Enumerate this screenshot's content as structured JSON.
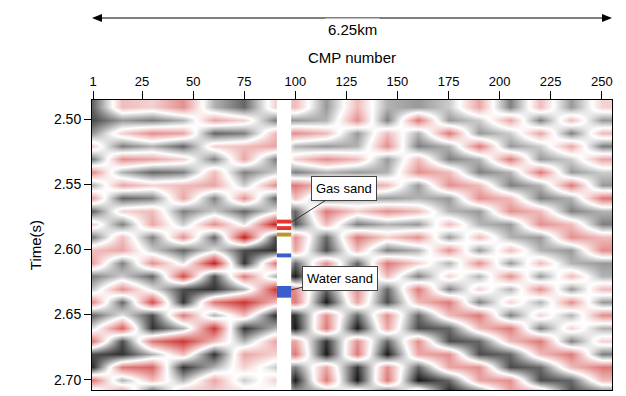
{
  "chart_data": {
    "type": "heatmap",
    "x_title": "CMP number",
    "y_title": "Time(s)",
    "distance_label": "6.25km",
    "x": [
      1,
      15,
      30,
      45,
      60,
      75,
      90,
      100,
      115,
      130,
      145,
      160,
      175,
      190,
      205,
      220,
      235,
      250
    ],
    "y": [
      2.49,
      2.5,
      2.51,
      2.52,
      2.53,
      2.54,
      2.55,
      2.56,
      2.57,
      2.58,
      2.59,
      2.6,
      2.61,
      2.62,
      2.63,
      2.64,
      2.65,
      2.66,
      2.67,
      2.68,
      2.69,
      2.7,
      2.71
    ],
    "z": [
      [
        0.6,
        0.7,
        0.4,
        -0.2,
        0.5,
        -0.5,
        0.3,
        -0.4,
        0.6,
        -0.2,
        0.5,
        -0.3,
        -0.4,
        0.5,
        0.2,
        -0.5,
        0.6,
        0.1,
        -0.6,
        0.7,
        0.8,
        -0.6,
        0.3
      ],
      [
        -0.3,
        0.4,
        -0.2,
        0.5,
        -0.5,
        0.3,
        -0.4,
        0.6,
        -0.2,
        0.5,
        -0.3,
        -0.4,
        0.5,
        0.2,
        -0.5,
        0.6,
        0.1,
        -0.7,
        0.7,
        0.8,
        -0.6,
        0.3,
        -0.6
      ],
      [
        -0.2,
        0.5,
        -0.5,
        0.3,
        -0.4,
        0.6,
        -0.2,
        0.5,
        -0.3,
        -0.4,
        0.5,
        0.2,
        -0.5,
        0.6,
        0.1,
        -0.8,
        0.7,
        0.8,
        -0.6,
        0.3,
        -0.7,
        -0.3,
        0.8
      ],
      [
        -0.5,
        0.3,
        -0.4,
        0.6,
        -0.2,
        0.5,
        -0.3,
        -0.4,
        0.5,
        0.2,
        -0.5,
        0.6,
        0.1,
        -0.8,
        0.7,
        0.8,
        -0.6,
        0.3,
        -0.9,
        -0.3,
        0.8,
        0.3,
        -0.4
      ],
      [
        0.3,
        -0.4,
        0.6,
        -0.2,
        0.5,
        -0.3,
        -0.4,
        0.5,
        0.2,
        -0.5,
        0.6,
        0.1,
        -1.0,
        0.7,
        0.8,
        -0.6,
        0.3,
        -0.9,
        -0.3,
        0.8,
        0.3,
        -0.4,
        -0.2
      ],
      [
        0.6,
        -0.2,
        0.5,
        -0.3,
        -0.4,
        0.5,
        0.2,
        -0.5,
        0.6,
        0.1,
        -1.0,
        0.7,
        0.8,
        -0.6,
        0.3,
        -0.9,
        -0.3,
        0.8,
        0.3,
        -0.4,
        -0.2,
        0.2,
        -0.2
      ],
      [
        -0.2,
        0.5,
        -0.3,
        -0.4,
        0.5,
        0.2,
        -0.5,
        0.6,
        0.1,
        -1.0,
        0.7,
        0.8,
        -0.6,
        0.3,
        -0.9,
        -0.3,
        0.8,
        0.3,
        -0.4,
        -0.2,
        0.2,
        -0.2,
        0.1
      ],
      [
        -0.3,
        0.4,
        -0.5,
        0.3,
        -0.2,
        0.5,
        -0.6,
        -0.3,
        0.6,
        0.7,
        -0.5,
        -0.4,
        0.6,
        0.9,
        -0.5,
        -0.6,
        0.8,
        0.9,
        -0.4,
        -0.6,
        0.5,
        0.9,
        0.3
      ],
      [
        0.4,
        0.3,
        -0.3,
        0.4,
        -0.5,
        0.3,
        -0.2,
        0.5,
        -0.6,
        -0.3,
        0.6,
        0.7,
        -0.5,
        -0.4,
        0.6,
        0.9,
        -0.5,
        -0.6,
        0.8,
        0.9,
        -0.4,
        -0.6,
        0.5
      ],
      [
        -0.3,
        -0.5,
        0.4,
        0.3,
        -0.3,
        0.4,
        -0.5,
        0.3,
        -0.2,
        0.5,
        -0.6,
        -0.3,
        0.6,
        0.7,
        -0.5,
        -0.4,
        0.6,
        0.9,
        -0.5,
        -0.6,
        0.8,
        0.9,
        -0.4
      ],
      [
        0.3,
        0.5,
        -0.3,
        -0.5,
        0.4,
        0.3,
        -0.3,
        0.4,
        -0.5,
        0.3,
        -0.2,
        0.5,
        -0.6,
        -0.3,
        0.6,
        0.7,
        -0.5,
        -0.4,
        0.6,
        0.9,
        -0.5,
        -0.6,
        0.8
      ],
      [
        0.4,
        -0.6,
        0.3,
        0.5,
        -0.3,
        -0.5,
        0.4,
        0.3,
        -0.3,
        0.4,
        -0.5,
        0.3,
        -0.2,
        0.5,
        -0.6,
        -0.3,
        0.6,
        0.7,
        -0.5,
        -0.4,
        0.6,
        0.9,
        -0.5
      ],
      [
        0.2,
        0.4,
        -0.6,
        0.3,
        0.5,
        -0.3,
        -0.5,
        0.4,
        0.3,
        -0.3,
        0.4,
        -0.5,
        0.3,
        -0.2,
        0.5,
        -0.6,
        -0.3,
        0.6,
        0.7,
        -0.5,
        -0.4,
        0.6,
        0.9
      ],
      [
        -0.4,
        0.2,
        0.4,
        -0.6,
        0.3,
        0.5,
        -0.3,
        -0.5,
        0.4,
        0.3,
        -0.3,
        0.4,
        -0.5,
        0.3,
        -0.2,
        0.5,
        -0.6,
        -0.3,
        0.6,
        0.7,
        -0.5,
        -0.4,
        0.6
      ],
      [
        0.5,
        -0.4,
        0.2,
        0.4,
        -0.6,
        0.3,
        0.5,
        -0.3,
        -0.5,
        0.4,
        0.3,
        -0.3,
        0.4,
        -0.5,
        0.3,
        -0.2,
        0.5,
        -0.6,
        -0.3,
        0.6,
        0.7,
        -0.5,
        -0.4
      ],
      [
        -0.3,
        0.5,
        -0.4,
        0.2,
        0.4,
        -0.6,
        0.3,
        0.5,
        -0.3,
        -0.5,
        0.4,
        0.3,
        -0.3,
        0.4,
        -0.5,
        0.3,
        -0.2,
        0.5,
        -0.6,
        -0.3,
        0.6,
        0.7,
        -0.5
      ],
      [
        0.4,
        -0.3,
        0.5,
        -0.4,
        0.2,
        0.4,
        -0.6,
        0.3,
        0.5,
        -0.3,
        -0.5,
        0.4,
        0.3,
        -0.3,
        0.4,
        -0.5,
        0.3,
        -0.2,
        0.5,
        -0.6,
        -0.3,
        0.6,
        0.7
      ],
      [
        -0.2,
        0.4,
        -0.3,
        0.5,
        -0.4,
        0.2,
        0.4,
        -0.6,
        0.3,
        0.5,
        -0.3,
        -0.5,
        0.4,
        0.3,
        -0.3,
        0.4,
        -0.5,
        0.3,
        -0.2,
        0.5,
        -0.6,
        -0.3,
        0.6
      ]
    ],
    "zlim": [
      -1,
      1
    ],
    "colors": [
      "#c8201e",
      "#ffffff",
      "#000000"
    ],
    "xlim": [
      0.5,
      255
    ],
    "xticks": [
      1,
      25,
      50,
      75,
      100,
      125,
      150,
      175,
      200,
      225,
      250
    ],
    "ylim": [
      2.485,
      2.708
    ],
    "yticks": [
      {
        "value": 2.5,
        "label": "2.50"
      },
      2.55,
      {
        "value": 2.6,
        "label": "2.60"
      },
      2.65,
      {
        "value": 2.7,
        "label": "2.70"
      }
    ],
    "well": {
      "cmp_range": [
        91,
        98
      ],
      "segments": [
        {
          "top": 2.577,
          "bottom": 2.58,
          "color": "#e8322d"
        },
        {
          "top": 2.582,
          "bottom": 2.585,
          "color": "#e8322d"
        },
        {
          "top": 2.587,
          "bottom": 2.59,
          "color": "#b59a2a"
        },
        {
          "top": 2.603,
          "bottom": 2.606,
          "color": "#3a5fcd"
        },
        {
          "top": 2.628,
          "bottom": 2.637,
          "color": "#3a5fcd"
        }
      ]
    },
    "annotations": [
      {
        "text": "Gas sand",
        "x": 98,
        "y": 2.579,
        "label_x": 124,
        "label_y": 2.553
      },
      {
        "text": "Water sand",
        "x": 98,
        "y": 2.631,
        "label_x": 122,
        "label_y": 2.622
      }
    ]
  }
}
